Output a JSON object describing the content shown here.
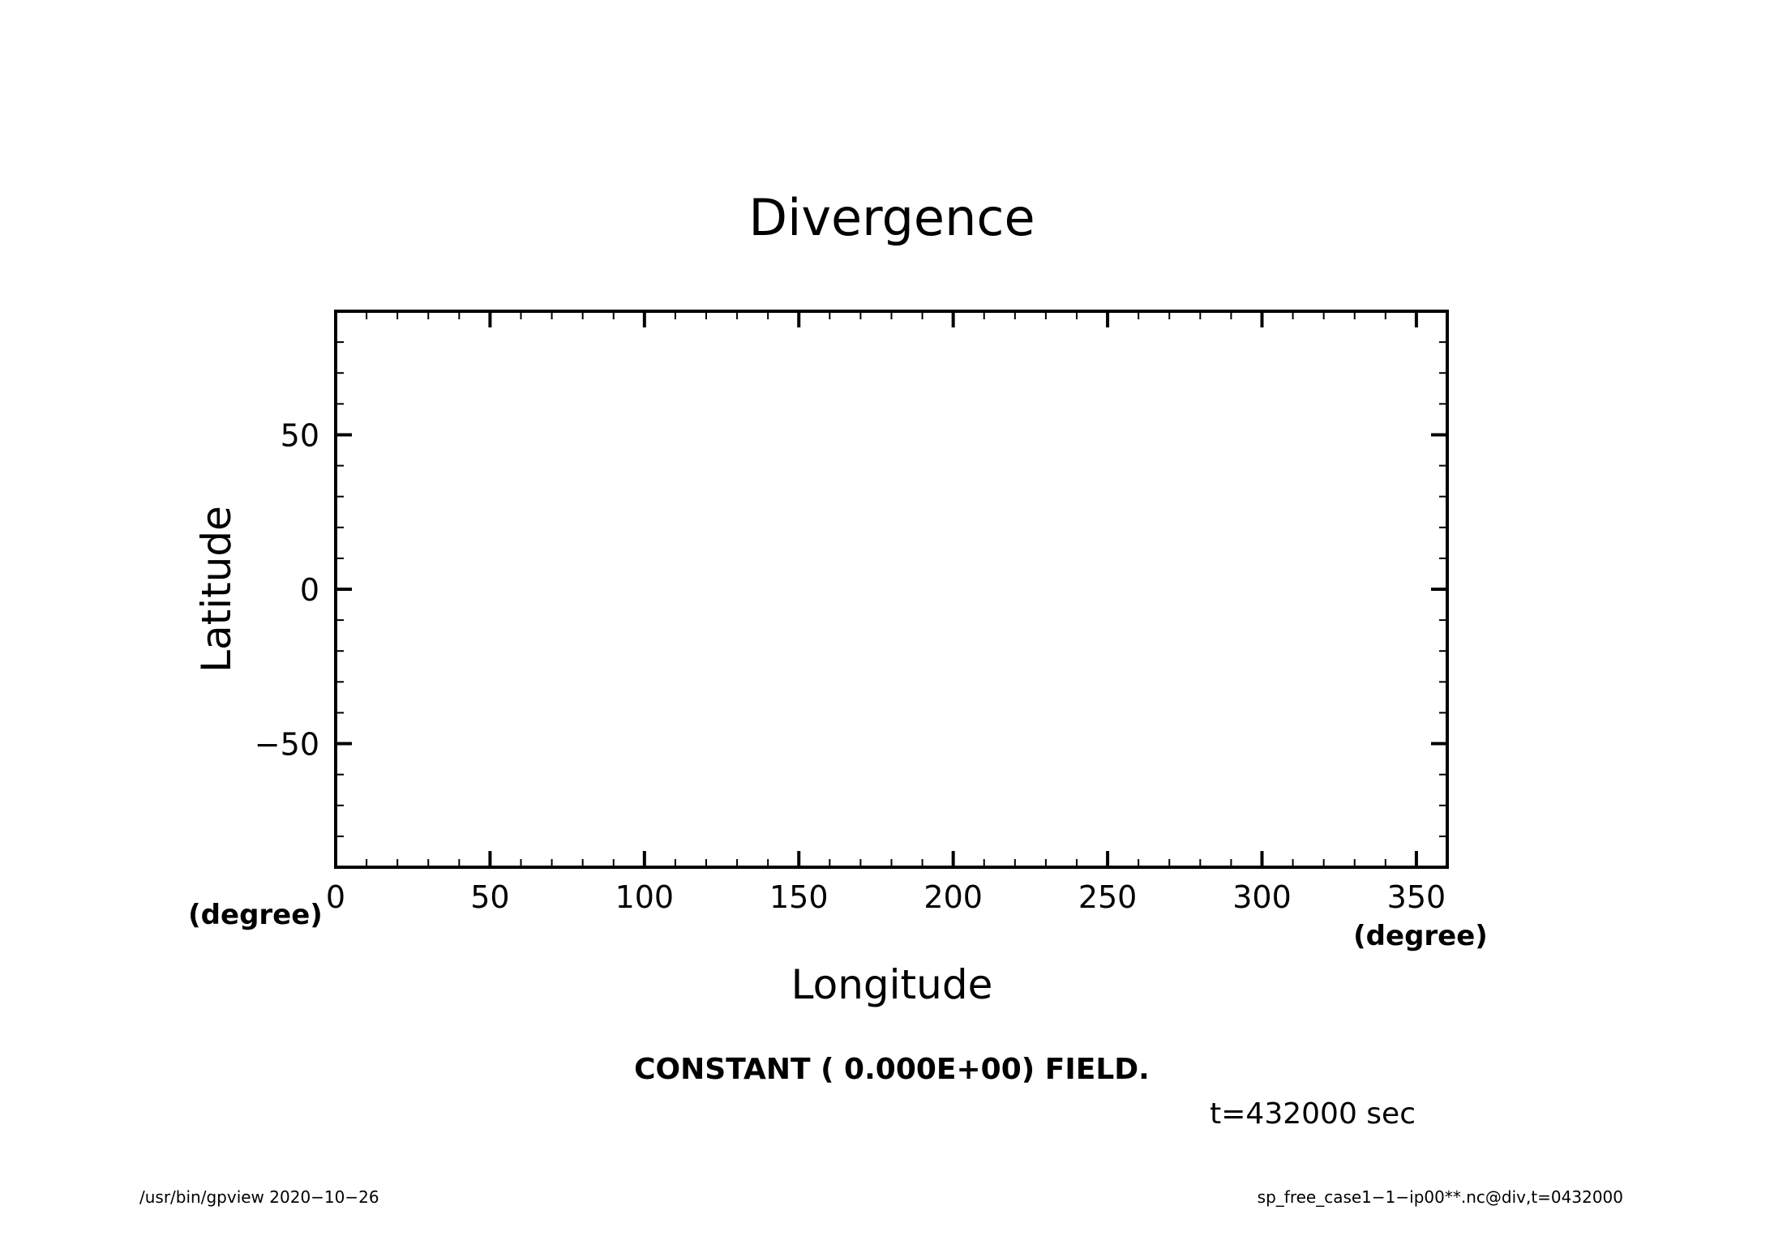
{
  "chart_data": {
    "type": "heatmap",
    "title": "Divergence",
    "xlabel": "Longitude",
    "ylabel": "Latitude",
    "x_unit": "(degree)",
    "y_unit": "(degree)",
    "xlim": [
      0,
      360
    ],
    "ylim": [
      -90,
      90
    ],
    "x_ticks": [
      0,
      50,
      100,
      150,
      200,
      250,
      300,
      350
    ],
    "x_tick_labels": [
      "0",
      "50",
      "100",
      "150",
      "200",
      "250",
      "300",
      "350"
    ],
    "y_ticks": [
      50,
      0,
      -50
    ],
    "y_tick_labels": [
      "50",
      "0",
      "−50"
    ],
    "x_minor_step": 10,
    "y_minor_step": 10,
    "grid": false,
    "field_value": 0.0
  },
  "message": "CONSTANT ( 0.000E+00) FIELD.",
  "time_label": "t=432000 sec",
  "footer": {
    "left": "/usr/bin/gpview   2020−10−26",
    "right": "sp_free_case1−1−ip00**.nc@div,t=0432000"
  }
}
